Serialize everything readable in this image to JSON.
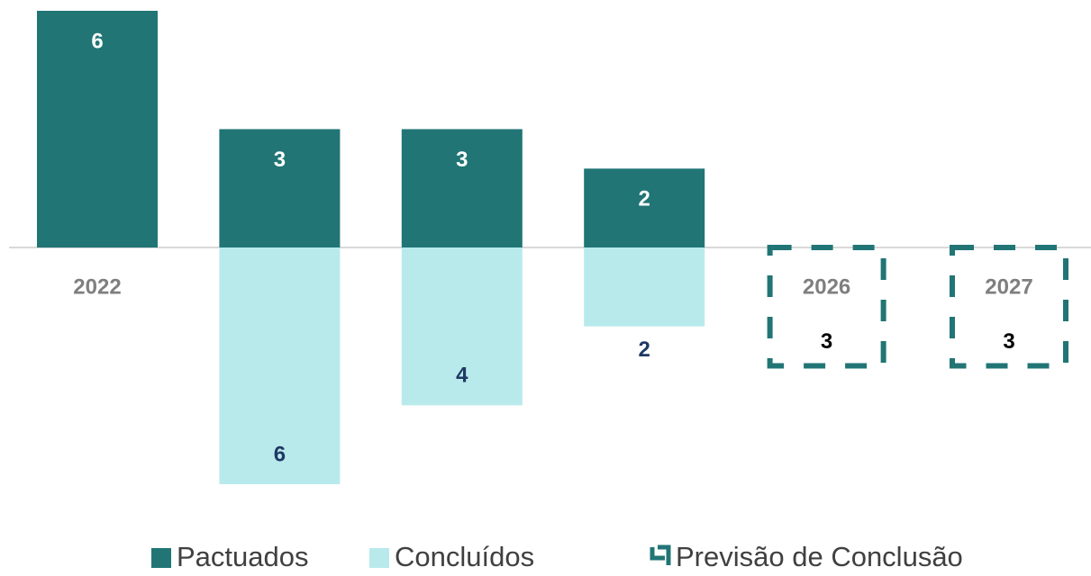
{
  "chart_data": {
    "type": "diverging-bar",
    "categories": [
      "2022",
      "2023",
      "2024",
      "2025",
      "2026",
      "2027"
    ],
    "series": [
      {
        "name": "Pactuados",
        "color": "#217575",
        "direction": "up",
        "style": "solid",
        "values": [
          6,
          3,
          3,
          2,
          null,
          null
        ]
      },
      {
        "name": "Concluídos",
        "color": "#b8eaec",
        "direction": "down",
        "style": "solid",
        "values": [
          null,
          6,
          4,
          2,
          null,
          null
        ]
      },
      {
        "name": "Previsão de Conclusão",
        "color": "#217575",
        "direction": "down",
        "style": "dashed",
        "values": [
          null,
          null,
          null,
          null,
          3,
          3
        ]
      }
    ]
  }
}
